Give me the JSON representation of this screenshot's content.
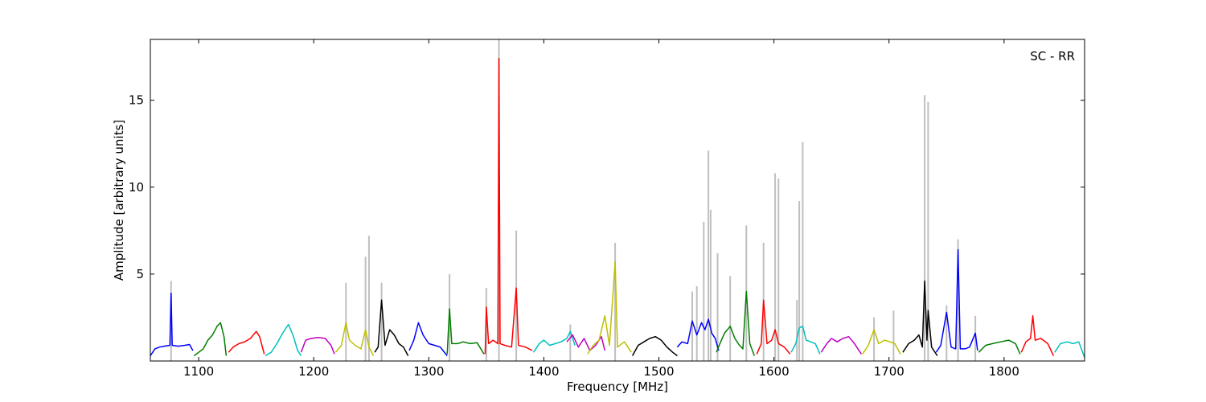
{
  "chart_data": {
    "type": "line",
    "title": "",
    "annotation": "SC - RR",
    "xlabel": "Frequency [MHz]",
    "ylabel": "Amplitude [arbitrary units]",
    "xlim": [
      1058,
      1870
    ],
    "ylim": [
      0,
      18.5
    ],
    "xticks": [
      1100,
      1200,
      1300,
      1400,
      1500,
      1600,
      1700,
      1800
    ],
    "xtick_labels": [
      "1100",
      "1200",
      "1300",
      "1400",
      "1500",
      "1600",
      "1700",
      "1800"
    ],
    "yticks": [
      5,
      10,
      15
    ],
    "ytick_labels": [
      "5",
      "10",
      "15"
    ],
    "grid": false,
    "legend": "none",
    "raw_color": "#bfbfbf",
    "raw_spikes": [
      {
        "x": 1076,
        "y": 4.6
      },
      {
        "x": 1228,
        "y": 4.5
      },
      {
        "x": 1245,
        "y": 6.0
      },
      {
        "x": 1248,
        "y": 7.2
      },
      {
        "x": 1259,
        "y": 4.5
      },
      {
        "x": 1318,
        "y": 5.0
      },
      {
        "x": 1350,
        "y": 4.2
      },
      {
        "x": 1361,
        "y": 18.5
      },
      {
        "x": 1376,
        "y": 7.5
      },
      {
        "x": 1423,
        "y": 2.1
      },
      {
        "x": 1462,
        "y": 6.8
      },
      {
        "x": 1529,
        "y": 4.0
      },
      {
        "x": 1533,
        "y": 4.3
      },
      {
        "x": 1539,
        "y": 8.0
      },
      {
        "x": 1543,
        "y": 12.1
      },
      {
        "x": 1545,
        "y": 8.7
      },
      {
        "x": 1551,
        "y": 6.2
      },
      {
        "x": 1562,
        "y": 4.9
      },
      {
        "x": 1576,
        "y": 7.8
      },
      {
        "x": 1591,
        "y": 6.8
      },
      {
        "x": 1601,
        "y": 10.8
      },
      {
        "x": 1604,
        "y": 10.5
      },
      {
        "x": 1620,
        "y": 3.5
      },
      {
        "x": 1622,
        "y": 9.2
      },
      {
        "x": 1625,
        "y": 12.6
      },
      {
        "x": 1687,
        "y": 2.5
      },
      {
        "x": 1704,
        "y": 2.9
      },
      {
        "x": 1731,
        "y": 15.3
      },
      {
        "x": 1734,
        "y": 14.9
      },
      {
        "x": 1750,
        "y": 3.2
      },
      {
        "x": 1760,
        "y": 7.0
      },
      {
        "x": 1775,
        "y": 2.6
      }
    ],
    "series": [
      {
        "color": "#0000ff",
        "x": [
          1058,
          1062,
          1066,
          1070,
          1075,
          1076,
          1077,
          1082,
          1088,
          1092,
          1095
        ],
        "y": [
          0.3,
          0.7,
          0.8,
          0.85,
          0.9,
          3.9,
          0.9,
          0.85,
          0.9,
          0.95,
          0.6
        ]
      },
      {
        "color": "#007f00",
        "x": [
          1096,
          1100,
          1104,
          1108,
          1112,
          1116,
          1119,
          1122,
          1124
        ],
        "y": [
          0.3,
          0.5,
          0.7,
          1.2,
          1.5,
          2.0,
          2.2,
          1.4,
          0.3
        ]
      },
      {
        "color": "#ff0000",
        "x": [
          1126,
          1130,
          1135,
          1140,
          1145,
          1150,
          1153,
          1157
        ],
        "y": [
          0.5,
          0.8,
          1.0,
          1.1,
          1.3,
          1.7,
          1.4,
          0.4
        ]
      },
      {
        "color": "#00bfbf",
        "x": [
          1158,
          1163,
          1168,
          1173,
          1178,
          1182,
          1186,
          1189
        ],
        "y": [
          0.3,
          0.5,
          1.0,
          1.6,
          2.1,
          1.5,
          0.6,
          0.3
        ]
      },
      {
        "color": "#bf00bf",
        "x": [
          1189,
          1193,
          1198,
          1204,
          1210,
          1215,
          1218
        ],
        "y": [
          0.5,
          1.2,
          1.3,
          1.35,
          1.3,
          0.9,
          0.4
        ]
      },
      {
        "color": "#bfbf00",
        "x": [
          1219,
          1224,
          1228,
          1231,
          1236,
          1241,
          1245,
          1248,
          1252
        ],
        "y": [
          0.5,
          0.9,
          2.2,
          1.2,
          0.9,
          0.7,
          1.8,
          0.8,
          0.3
        ]
      },
      {
        "color": "#000000",
        "x": [
          1253,
          1256,
          1259,
          1262,
          1266,
          1270,
          1274,
          1278,
          1282
        ],
        "y": [
          0.5,
          0.8,
          3.5,
          0.9,
          1.8,
          1.5,
          1.0,
          0.8,
          0.3
        ]
      },
      {
        "color": "#0000ff",
        "x": [
          1283,
          1287,
          1291,
          1295,
          1300,
          1305,
          1310,
          1316
        ],
        "y": [
          0.6,
          1.2,
          2.2,
          1.5,
          1.0,
          0.9,
          0.8,
          0.3
        ]
      },
      {
        "color": "#007f00",
        "x": [
          1316,
          1318,
          1320,
          1325,
          1330,
          1336,
          1342,
          1348
        ],
        "y": [
          0.4,
          3.0,
          1.0,
          1.0,
          1.1,
          1.0,
          1.05,
          0.4
        ]
      },
      {
        "color": "#ff0000",
        "x": [
          1349,
          1350,
          1352,
          1356,
          1360,
          1361,
          1362,
          1366,
          1372,
          1376,
          1378,
          1384,
          1390
        ],
        "y": [
          0.4,
          3.1,
          1.0,
          1.2,
          1.0,
          17.4,
          1.0,
          0.9,
          0.8,
          4.2,
          0.9,
          0.8,
          0.6
        ]
      },
      {
        "color": "#00bfbf",
        "x": [
          1391,
          1396,
          1400,
          1405,
          1410,
          1415,
          1420,
          1423,
          1427
        ],
        "y": [
          0.5,
          1.0,
          1.2,
          0.9,
          1.0,
          1.1,
          1.3,
          1.7,
          0.9
        ]
      },
      {
        "color": "#bf00bf",
        "x": [
          1420,
          1425,
          1430,
          1435,
          1440,
          1445,
          1450,
          1453
        ],
        "y": [
          1.1,
          1.5,
          0.8,
          1.3,
          0.6,
          0.9,
          1.4,
          0.6
        ]
      },
      {
        "color": "#bfbf00",
        "x": [
          1438,
          1443,
          1448,
          1453,
          1457,
          1462,
          1464,
          1470,
          1476
        ],
        "y": [
          0.4,
          0.9,
          1.2,
          2.6,
          0.9,
          5.7,
          0.8,
          1.1,
          0.5
        ]
      },
      {
        "color": "#000000",
        "x": [
          1477,
          1482,
          1487,
          1492,
          1497,
          1502,
          1507,
          1512,
          1516
        ],
        "y": [
          0.3,
          0.9,
          1.1,
          1.3,
          1.4,
          1.2,
          0.8,
          0.5,
          0.3
        ]
      },
      {
        "color": "#0000ff",
        "x": [
          1516,
          1520,
          1525,
          1529,
          1533,
          1537,
          1540,
          1543,
          1546,
          1549,
          1552
        ],
        "y": [
          0.8,
          1.1,
          1.0,
          2.3,
          1.5,
          2.2,
          1.8,
          2.4,
          1.6,
          1.3,
          0.6
        ]
      },
      {
        "color": "#007f00",
        "x": [
          1550,
          1553,
          1557,
          1562,
          1566,
          1570,
          1573,
          1576,
          1579,
          1583
        ],
        "y": [
          0.5,
          1.0,
          1.6,
          2.0,
          1.3,
          0.9,
          0.7,
          4.0,
          1.0,
          0.3
        ]
      },
      {
        "color": "#ff0000",
        "x": [
          1585,
          1589,
          1591,
          1594,
          1598,
          1601,
          1604,
          1609,
          1614
        ],
        "y": [
          0.4,
          1.0,
          3.5,
          1.0,
          1.2,
          1.8,
          1.0,
          0.8,
          0.4
        ]
      },
      {
        "color": "#00bfbf",
        "x": [
          1615,
          1619,
          1622,
          1625,
          1628,
          1632,
          1636,
          1640
        ],
        "y": [
          0.5,
          1.0,
          1.9,
          2.0,
          1.2,
          1.1,
          1.0,
          0.4
        ]
      },
      {
        "color": "#bf00bf",
        "x": [
          1641,
          1646,
          1650,
          1655,
          1660,
          1665,
          1670,
          1676
        ],
        "y": [
          0.5,
          1.0,
          1.3,
          1.1,
          1.3,
          1.4,
          1.0,
          0.4
        ]
      },
      {
        "color": "#bfbf00",
        "x": [
          1677,
          1682,
          1687,
          1691,
          1696,
          1701,
          1705,
          1710
        ],
        "y": [
          0.4,
          0.9,
          1.8,
          1.0,
          1.2,
          1.1,
          1.0,
          0.4
        ]
      },
      {
        "color": "#000000",
        "x": [
          1712,
          1717,
          1722,
          1726,
          1729,
          1731,
          1733,
          1734,
          1737,
          1742
        ],
        "y": [
          0.5,
          1.0,
          1.2,
          1.5,
          0.8,
          4.6,
          1.2,
          2.9,
          0.8,
          0.3
        ]
      },
      {
        "color": "#0000ff",
        "x": [
          1741,
          1745,
          1750,
          1754,
          1758,
          1760,
          1762,
          1766,
          1770,
          1775,
          1777
        ],
        "y": [
          0.5,
          0.9,
          2.8,
          0.8,
          0.7,
          6.4,
          0.7,
          0.7,
          0.8,
          1.6,
          0.6
        ]
      },
      {
        "color": "#007f00",
        "x": [
          1778,
          1784,
          1790,
          1797,
          1804,
          1810,
          1814
        ],
        "y": [
          0.5,
          0.9,
          1.0,
          1.1,
          1.2,
          1.0,
          0.4
        ]
      },
      {
        "color": "#ff0000",
        "x": [
          1815,
          1819,
          1823,
          1825,
          1827,
          1832,
          1838,
          1843
        ],
        "y": [
          0.5,
          1.1,
          1.3,
          2.6,
          1.2,
          1.3,
          1.0,
          0.3
        ]
      },
      {
        "color": "#00bfbf",
        "x": [
          1844,
          1849,
          1855,
          1860,
          1865,
          1870
        ],
        "y": [
          0.5,
          1.0,
          1.1,
          1.0,
          1.1,
          0.2
        ]
      }
    ]
  }
}
